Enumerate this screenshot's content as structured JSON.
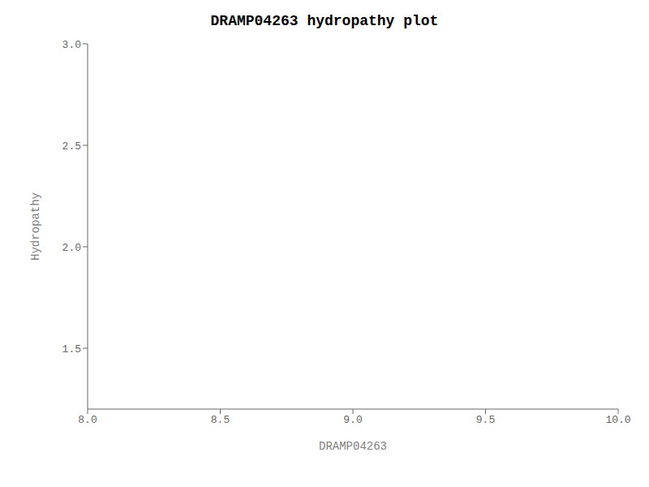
{
  "chart_data": {
    "type": "line",
    "title": "DRAMP04263 hydropathy plot",
    "xlabel": "DRAMP04263",
    "ylabel": "Hydropathy",
    "xlim": [
      8.0,
      10.0
    ],
    "ylim": [
      1.2,
      3.0
    ],
    "xticks": [
      {
        "value": 8.0,
        "label": "8.0"
      },
      8.5,
      {
        "value": 9.0,
        "label": "9.0"
      },
      9.5,
      {
        "value": 10.0,
        "label": "10.0"
      }
    ],
    "yticks": [
      1.5,
      {
        "value": 2.0,
        "label": "2.0"
      },
      2.5,
      {
        "value": 3.0,
        "label": "3.0"
      }
    ],
    "grid": false
  }
}
